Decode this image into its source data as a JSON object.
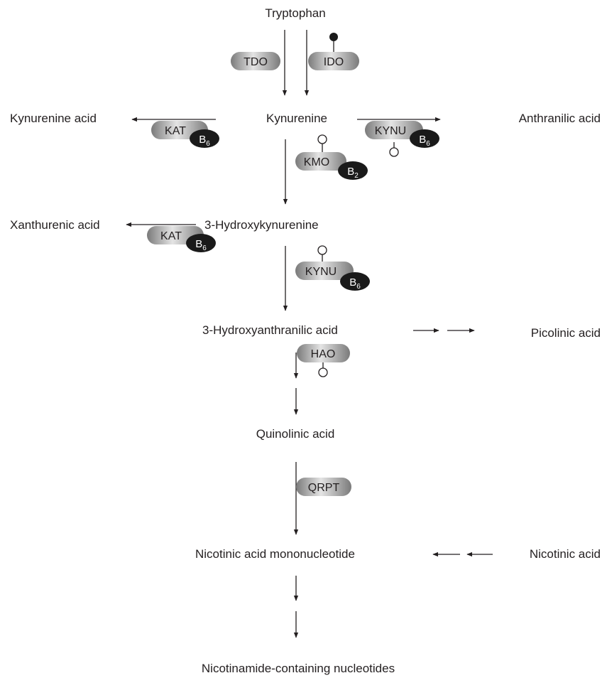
{
  "metabolites": {
    "tryptophan": "Tryptophan",
    "kynurenine": "Kynurenine",
    "kynurenine_acid": "Kynurenine acid",
    "anthranilic_acid": "Anthranilic acid",
    "hydroxykynurenine": "3-Hydroxykynurenine",
    "xanthurenic_acid": "Xanthurenic acid",
    "hydroxyanthranilic_acid": "3-Hydroxyanthranilic acid",
    "picolinic_acid": "Picolinic acid",
    "quinolinic_acid": "Quinolinic acid",
    "nicotinic_acid_mononucleotide": "Nicotinic acid mononucleotide",
    "nicotinic_acid": "Nicotinic acid",
    "nicotinamide_nucleotides": "Nicotinamide-containing nucleotides"
  },
  "enzymes": {
    "tdo": "TDO",
    "ido": "IDO",
    "kat": "KAT",
    "kynu": "KYNU",
    "kmo": "KMO",
    "hao": "HAO",
    "qrpt": "QRPT"
  },
  "cofactors": {
    "b6": {
      "letter": "B",
      "sub": "6"
    },
    "b2": {
      "letter": "B",
      "sub": "2"
    }
  },
  "colors": {
    "enzyme_fill_light": "#d9d9d9",
    "enzyme_fill_dark": "#7a7a7a",
    "cofactor_fill": "#1a1a1a",
    "line": "#231f20"
  }
}
